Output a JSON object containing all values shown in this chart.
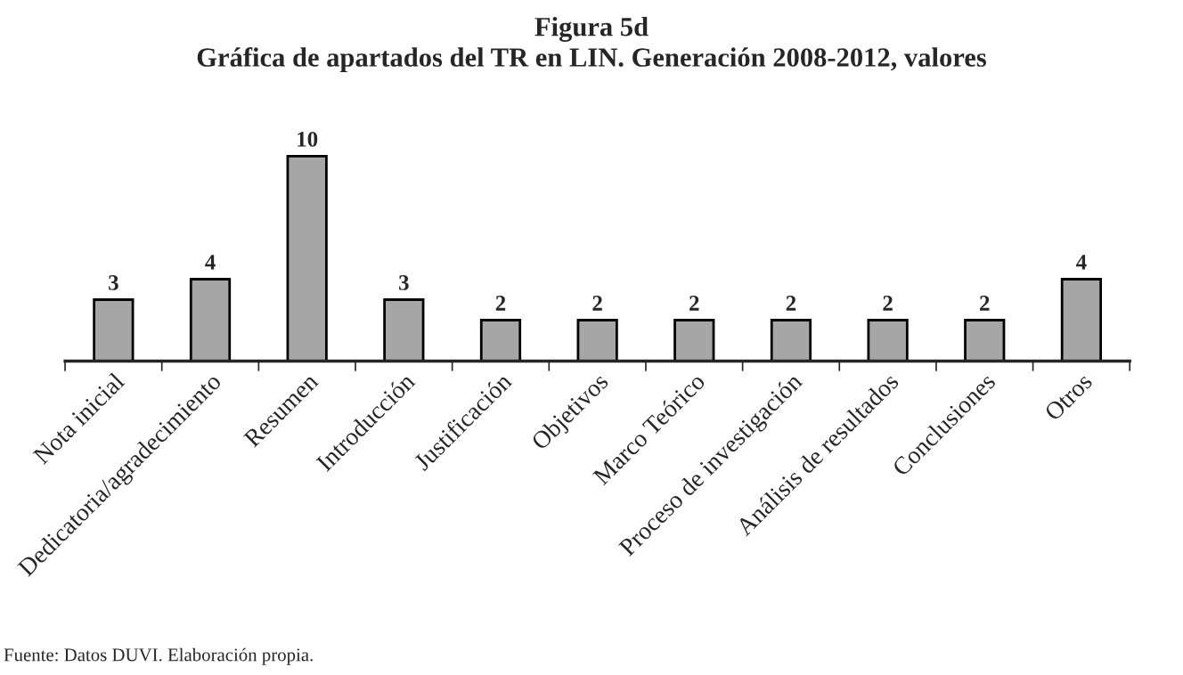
{
  "chart_data": {
    "type": "bar",
    "title": "Figura 5d",
    "subtitle": "Gráfica de apartados del TR en LIN. Generación 2008-2012, valores",
    "categories": [
      "Nota inicial",
      "Dedicatoria/agradecimiento",
      "Resumen",
      "Introducción",
      "Justificación",
      "Objetivos",
      "Marco Teórico",
      "Proceso de investigación",
      "Análisis de resultados",
      "Conclusiones",
      "Otros"
    ],
    "values": [
      3,
      4,
      10,
      3,
      2,
      2,
      2,
      2,
      2,
      2,
      4
    ],
    "color": "#a6a6a6",
    "data_labels": true,
    "grid": false,
    "legend": false,
    "annotations": [
      "Fuente: Datos DUVI. Elaboración propia."
    ]
  }
}
